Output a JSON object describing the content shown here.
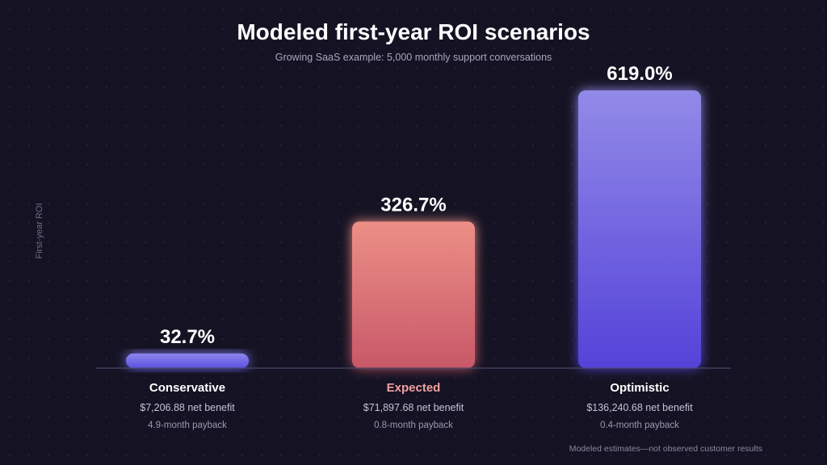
{
  "colors": {
    "conservative_top": "#8c86ee",
    "conservative_bottom": "#5c50df",
    "expected_top": "#ec8f86",
    "expected_bottom": "#c85868",
    "optimistic_top": "#928ae8",
    "optimistic_bottom": "#5442d8",
    "expected_label": "#f2a1a0",
    "background": "#151323"
  },
  "footnote": "Modeled estimates—not observed customer results",
  "chart_data": {
    "type": "bar",
    "title": "Modeled first-year ROI scenarios",
    "subtitle": "Growing SaaS example: 5,000 monthly support conversations",
    "ylabel": "First-year ROI",
    "xlabel": "",
    "categories": [
      "Conservative",
      "Expected",
      "Optimistic"
    ],
    "values": [
      32.7,
      326.7,
      619.0
    ],
    "value_labels": [
      "32.7%",
      "326.7%",
      "619.0%"
    ],
    "net_benefits": [
      "$7,206.88 net benefit",
      "$71,897.68 net benefit",
      "$136,240.68 net benefit"
    ],
    "paybacks": [
      "4.9-month payback",
      "0.8-month payback",
      "0.4-month payback"
    ],
    "ylim": [
      0,
      619.0
    ],
    "grid": false,
    "legend": "none"
  }
}
